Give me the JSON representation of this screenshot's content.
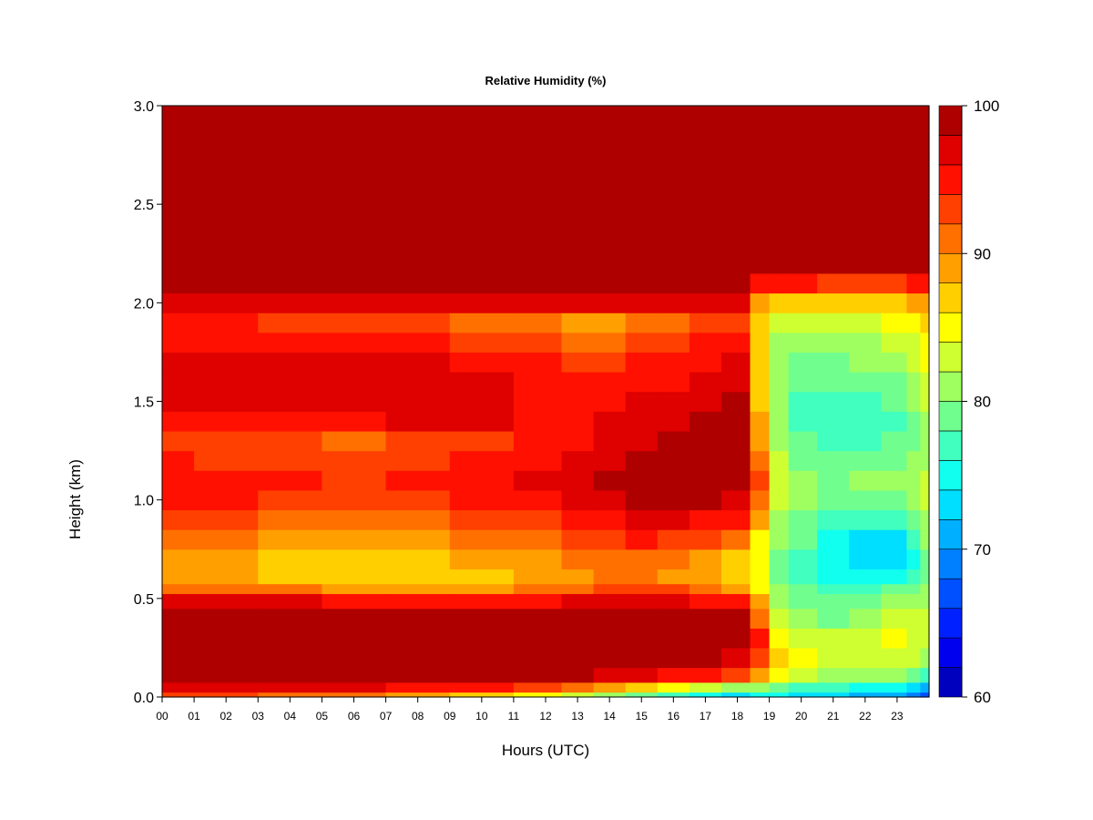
{
  "chart_data": {
    "type": "heatmap",
    "title": "Relative Humidity (%)",
    "xlabel": "Hours (UTC)",
    "ylabel": "Height (km)",
    "x_ticks": [
      "00",
      "01",
      "02",
      "03",
      "04",
      "05",
      "06",
      "07",
      "08",
      "09",
      "10",
      "11",
      "12",
      "13",
      "14",
      "15",
      "16",
      "17",
      "18",
      "19",
      "20",
      "21",
      "22",
      "23"
    ],
    "y_ticks": [
      "0.0",
      "0.5",
      "1.0",
      "1.5",
      "2.0",
      "2.5",
      "3.0"
    ],
    "xlim": [
      0,
      24
    ],
    "ylim": [
      0,
      3
    ],
    "colorbar": {
      "ticks": [
        "60",
        "70",
        "80",
        "90",
        "100"
      ],
      "range": [
        60,
        100
      ],
      "levels": 20,
      "colors": [
        "#00008f",
        "#0000bf",
        "#0000ef",
        "#0020ff",
        "#0050ff",
        "#0080ff",
        "#00afff",
        "#00dfff",
        "#10ffef",
        "#40ffbf",
        "#70ff8f",
        "#9fff60",
        "#cfff30",
        "#ffff00",
        "#ffcf00",
        "#ff9f00",
        "#ff7000",
        "#ff4000",
        "#ff1000",
        "#df0000",
        "#af0000",
        "#800000"
      ]
    },
    "columns_x_hours": [
      0,
      2,
      4,
      6,
      8,
      10,
      12,
      13,
      14,
      15,
      16,
      17,
      18,
      18.8,
      19.2,
      20,
      21,
      22,
      23,
      23.6,
      23.85
    ],
    "rows_height_km": [
      0,
      0.05,
      0.1,
      0.2,
      0.3,
      0.4,
      0.5,
      0.55,
      0.6,
      0.7,
      0.8,
      0.9,
      1.0,
      1.1,
      1.2,
      1.3,
      1.4,
      1.5,
      1.6,
      1.7,
      1.8,
      1.9,
      2.0,
      2.1,
      2.2,
      2.5,
      3.0
    ],
    "values_rh_percent": [
      [
        92,
        97,
        100,
        100,
        100,
        99,
        96,
        91,
        88,
        88,
        90,
        92,
        94,
        95,
        94,
        93,
        95,
        96,
        97,
        96,
        95,
        95,
        97,
        100,
        100,
        100,
        100
      ],
      [
        92,
        97,
        100,
        100,
        100,
        99,
        96,
        91,
        88,
        88,
        90,
        92,
        94,
        94,
        93,
        92,
        94,
        96,
        97,
        96,
        95,
        94,
        97,
        100,
        100,
        100,
        100
      ],
      [
        91,
        97,
        100,
        100,
        100,
        99,
        96,
        90,
        87,
        87,
        89,
        91,
        93,
        94,
        93,
        92,
        95,
        97,
        97,
        96,
        94,
        93,
        96,
        100,
        100,
        100,
        100
      ],
      [
        90,
        96,
        100,
        100,
        100,
        99,
        95,
        88,
        86,
        86,
        88,
        90,
        92,
        93,
        92,
        91,
        95,
        97,
        97,
        96,
        94,
        93,
        96,
        100,
        100,
        100,
        100
      ],
      [
        88,
        95,
        100,
        100,
        100,
        99,
        95,
        88,
        86,
        87,
        89,
        91,
        93,
        94,
        93,
        92,
        96,
        97,
        97,
        96,
        94,
        92,
        96,
        100,
        100,
        100,
        100
      ],
      [
        86,
        94,
        100,
        100,
        100,
        99,
        95,
        89,
        87,
        88,
        90,
        92,
        94,
        95,
        94,
        93,
        96,
        96,
        96,
        95,
        93,
        91,
        96,
        100,
        100,
        100,
        100
      ],
      [
        84,
        92,
        99,
        100,
        100,
        99,
        95,
        90,
        88,
        89,
        91,
        93,
        95,
        96,
        95,
        94,
        95,
        95,
        95,
        94,
        92,
        90,
        96,
        100,
        100,
        100,
        100
      ],
      [
        82,
        90,
        98,
        100,
        100,
        99,
        96,
        91,
        89,
        90,
        92,
        94,
        96,
        97,
        96,
        95,
        95,
        94,
        94,
        93,
        91,
        89,
        96,
        100,
        100,
        100,
        100
      ],
      [
        80,
        88,
        97,
        100,
        100,
        99,
        96,
        92,
        90,
        91,
        93,
        95,
        97,
        98,
        97,
        96,
        96,
        95,
        94,
        93,
        91,
        89,
        96,
        100,
        100,
        100,
        100
      ],
      [
        78,
        86,
        96,
        99,
        100,
        99,
        96,
        92,
        90,
        91,
        94,
        96,
        98,
        99,
        98,
        97,
        97,
        96,
        95,
        94,
        92,
        90,
        96,
        100,
        100,
        100,
        100
      ],
      [
        76,
        84,
        95,
        99,
        100,
        99,
        96,
        92,
        89,
        90,
        93,
        96,
        99,
        100,
        99,
        98,
        97,
        96,
        95,
        94,
        93,
        91,
        96,
        100,
        100,
        100,
        100
      ],
      [
        75,
        83,
        94,
        98,
        99,
        98,
        95,
        90,
        88,
        89,
        92,
        95,
        98,
        100,
        99,
        98,
        98,
        97,
        96,
        95,
        94,
        92,
        96,
        100,
        100,
        100,
        100
      ],
      [
        73,
        80,
        92,
        97,
        99,
        98,
        94,
        88,
        86,
        87,
        90,
        94,
        97,
        99,
        99,
        98,
        98,
        98,
        97,
        96,
        95,
        93,
        96,
        100,
        100,
        100,
        100
      ],
      [
        74,
        80,
        88,
        93,
        94,
        91,
        88,
        85,
        84,
        84,
        85,
        88,
        91,
        92,
        91,
        89,
        88,
        87,
        87,
        86,
        86,
        86,
        88,
        95,
        100,
        100,
        100
      ],
      [
        75,
        79,
        84,
        86,
        85,
        82,
        81,
        80,
        79,
        79,
        80,
        81,
        82,
        83,
        82,
        81,
        80,
        80,
        80,
        80,
        81,
        83,
        86,
        94,
        100,
        100,
        100
      ],
      [
        73,
        77,
        82,
        84,
        83,
        80,
        79,
        78,
        77,
        77,
        78,
        79,
        80,
        80,
        79,
        78,
        77,
        77,
        78,
        79,
        80,
        82,
        86,
        94,
        100,
        100,
        100
      ],
      [
        72,
        76,
        81,
        83,
        82,
        79,
        78,
        77,
        75,
        74,
        75,
        77,
        79,
        79,
        78,
        77,
        76,
        77,
        78,
        79,
        80,
        82,
        86,
        93,
        99,
        100,
        100
      ],
      [
        71,
        75,
        80,
        83,
        83,
        80,
        79,
        77,
        74,
        72,
        73,
        76,
        79,
        80,
        79,
        77,
        76,
        77,
        78,
        80,
        81,
        83,
        87,
        93,
        99,
        100,
        100
      ],
      [
        70,
        74,
        80,
        83,
        84,
        82,
        80,
        78,
        75,
        73,
        73,
        76,
        79,
        80,
        79,
        78,
        77,
        78,
        79,
        81,
        82,
        84,
        87,
        93,
        99,
        100,
        100
      ],
      [
        68,
        72,
        78,
        82,
        83,
        82,
        80,
        78,
        76,
        75,
        76,
        78,
        80,
        81,
        80,
        79,
        79,
        80,
        81,
        82,
        83,
        85,
        88,
        94,
        99,
        100,
        100
      ],
      [
        66,
        70,
        76,
        80,
        82,
        82,
        81,
        80,
        79,
        79,
        80,
        81,
        82,
        82,
        81,
        80,
        81,
        82,
        83,
        84,
        85,
        86,
        89,
        94,
        99,
        100,
        100
      ]
    ]
  }
}
